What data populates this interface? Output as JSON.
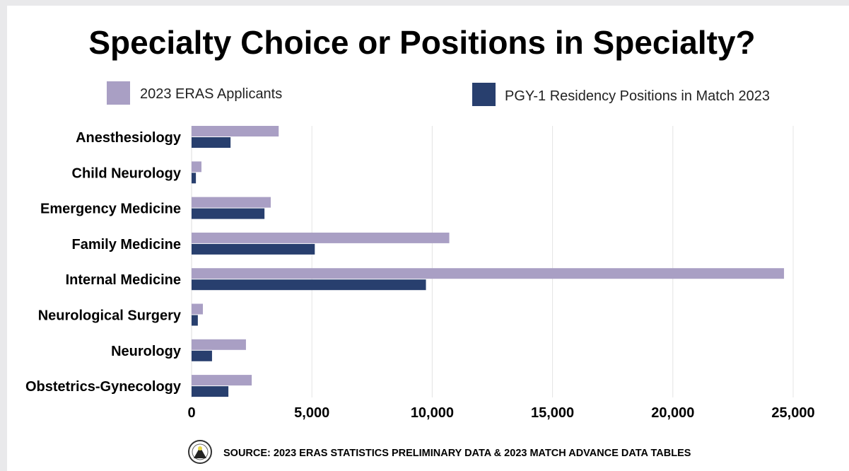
{
  "chart_data": {
    "type": "bar",
    "orientation": "horizontal",
    "title": "Specialty Choice or Positions in Specialty?",
    "categories": [
      "Anesthesiology",
      "Child Neurology",
      "Emergency Medicine",
      "Family Medicine",
      "Internal Medicine",
      "Neurological Surgery",
      "Neurology",
      "Obstetrics-Gynecology"
    ],
    "series": [
      {
        "name": "2023 ERAS Applicants",
        "color": "#a99fc4",
        "values": [
          3620,
          410,
          3290,
          10710,
          24620,
          470,
          2260,
          2500
        ]
      },
      {
        "name": "PGY-1 Residency Positions in Match 2023",
        "color": "#283f6e",
        "values": [
          1620,
          180,
          3030,
          5120,
          9740,
          260,
          850,
          1530
        ]
      }
    ],
    "xlim": [
      0,
      25000
    ],
    "xticks": [
      0,
      5000,
      10000,
      15000,
      20000,
      25000
    ],
    "xtick_labels": [
      "0",
      "5,000",
      "10,000",
      "15,000",
      "20,000",
      "25,000"
    ],
    "grid": true,
    "legend": "top",
    "source": "SOURCE: 2023 ERAS STATISTICS PRELIMINARY DATA  & 2023 MATCH ADVANCE DATA TABLES"
  }
}
